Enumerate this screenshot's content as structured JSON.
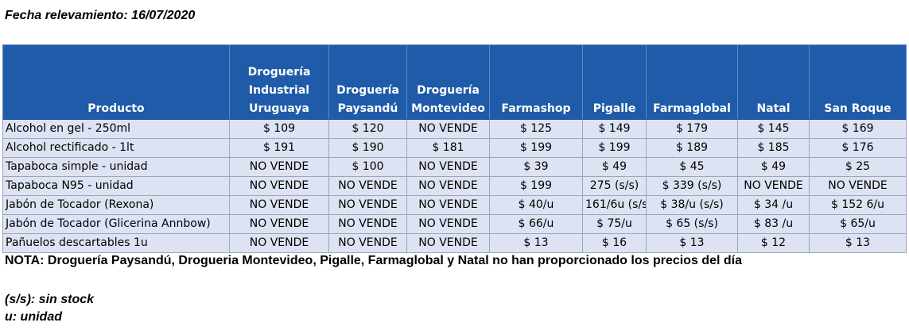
{
  "date_line": "Fecha relevamiento: 16/07/2020",
  "table": {
    "headers": [
      [
        "",
        "",
        "",
        "Producto"
      ],
      [
        "Droguería",
        "Industrial",
        "Uruguaya"
      ],
      [
        "",
        "Droguería",
        "Paysandú"
      ],
      [
        "",
        "Droguería",
        "Montevideo"
      ],
      [
        "",
        "",
        "",
        "Farmashop"
      ],
      [
        "",
        "",
        "",
        "Pigalle"
      ],
      [
        "",
        "",
        "",
        "Farmaglobal"
      ],
      [
        "",
        "",
        "",
        "Natal"
      ],
      [
        "",
        "",
        "",
        "San Roque"
      ]
    ],
    "rows": [
      [
        "Alcohol en gel  - 250ml",
        "$ 109",
        "$ 120",
        "NO VENDE",
        "$ 125",
        "$ 149",
        "$ 179",
        "$ 145",
        "$ 169"
      ],
      [
        "Alcohol rectificado - 1lt",
        "$ 191",
        "$ 190",
        "$ 181",
        "$ 199",
        "$ 199",
        "$ 189",
        "$ 185",
        "$ 176"
      ],
      [
        "Tapaboca simple - unidad",
        "NO VENDE",
        "$ 100",
        "NO VENDE",
        "$ 39",
        "$ 49",
        "$ 45",
        "$ 49",
        "$ 25"
      ],
      [
        "Tapaboca N95 - unidad",
        "NO VENDE",
        "NO VENDE",
        "NO VENDE",
        "$ 199",
        "275 (s/s)",
        "$ 339 (s/s)",
        "NO VENDE",
        "NO VENDE"
      ],
      [
        "Jabón de Tocador (Rexona)",
        "NO VENDE",
        "NO VENDE",
        "NO VENDE",
        "$ 40/u",
        "161/6u (s/s",
        "$ 38/u (s/s)",
        "$ 34 /u",
        "$ 152 6/u"
      ],
      [
        "Jabón de Tocador (Glicerina Annbow)",
        "NO VENDE",
        "NO VENDE",
        "NO VENDE",
        "$ 66/u",
        "$ 75/u",
        "$ 65 (s/s)",
        "$ 83 /u",
        "$ 65/u"
      ],
      [
        "Pañuelos descartables 1u",
        "NO VENDE",
        "NO VENDE",
        "NO VENDE",
        "$ 13",
        "$ 16",
        "$ 13",
        "$ 12",
        "$ 13"
      ]
    ]
  },
  "nota": "NOTA: Droguería Paysandú, Drogueria Montevideo, Pigalle, Farmaglobal y Natal no han proporcionado los precios del día",
  "legend": [
    "(s/s): sin stock",
    "u: unidad"
  ],
  "colors": {
    "header_bg": "#1f5ba8",
    "header_text": "#ffffff",
    "row_bg": "#dde3f2",
    "grid": "#9aa6bd"
  }
}
